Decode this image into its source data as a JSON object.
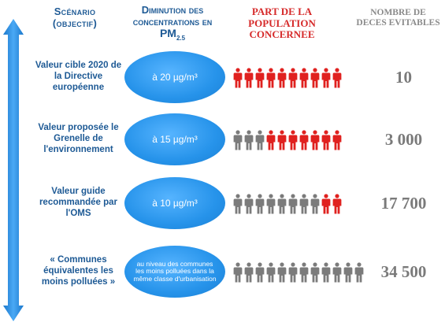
{
  "headers": {
    "scenario_line1": "Scénario",
    "scenario_line2": "(objectif)",
    "concentration_line1": "Diminution des",
    "concentration_line2": "concentrations en",
    "concentration_pm": "PM",
    "concentration_sub": "2.5",
    "population_line1": "PART DE LA",
    "population_line2": "POPULATION",
    "population_line3": "CONCERNEE",
    "deces_line1": "NOMBRE DE",
    "deces_line2": "DECES EVITABLES"
  },
  "colors": {
    "highlight_red": "#e0211f",
    "neutral_gray": "#7b7b7b",
    "arrow_blue": "#2b8fe0",
    "ellipse_blue": "#2693ea"
  },
  "rows": [
    {
      "scenario": "Valeur cible 2020 de la Directive européenne",
      "concentration": "à 20 µg/m³",
      "people_red": 10,
      "people_total": 10,
      "deaths": "10"
    },
    {
      "scenario": "Valeur proposée le Grenelle de l'environnement",
      "concentration": "à 15 µg/m³",
      "people_red": 7,
      "people_total": 10,
      "deaths": "3 000"
    },
    {
      "scenario": "Valeur guide recommandée par l'OMS",
      "concentration": "à 10 µg/m³",
      "people_red": 2,
      "people_total": 10,
      "deaths": "17 700"
    },
    {
      "scenario": "« Communes équivalentes les moins polluées »",
      "concentration": "au niveau des communes les moins polluées dans la même classe d'urbanisation",
      "people_red": 0,
      "people_total": 12,
      "deaths": "34 500"
    }
  ]
}
